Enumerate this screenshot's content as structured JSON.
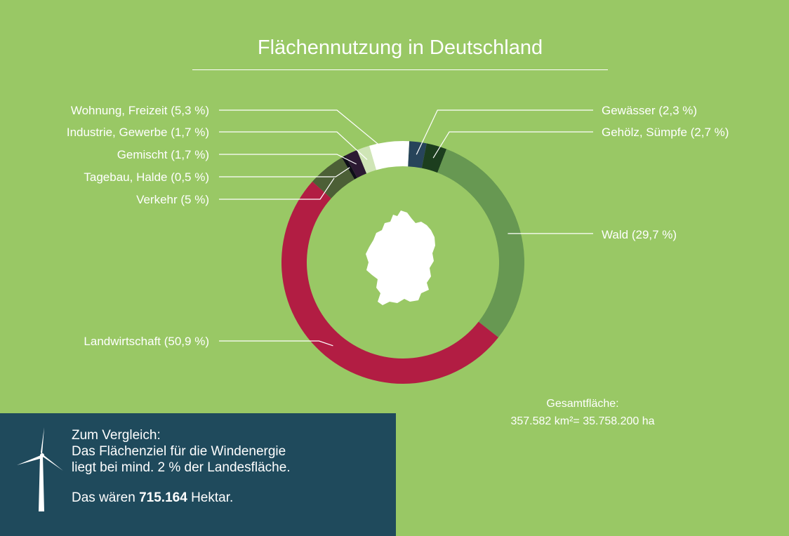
{
  "title": "Flächennutzung in Deutschland",
  "chart_data": {
    "type": "pie",
    "variant": "donut",
    "title": "Flächennutzung in Deutschland",
    "slices": [
      {
        "label": "Gewässer (2,3 %)",
        "value": 2.3,
        "color": "#27445a"
      },
      {
        "label": "Gehölz, Sümpfe (2,7 %)",
        "value": 2.7,
        "color": "#1c3e1e"
      },
      {
        "label": "Wald (29,7 %)",
        "value": 29.7,
        "color": "#679852"
      },
      {
        "label": "Landwirtschaft (50,9 %)",
        "value": 50.9,
        "color": "#b21d43"
      },
      {
        "label": "Verkehr (5 %)",
        "value": 5.0,
        "color": "#4c5f36"
      },
      {
        "label": "Tagebau, Halde (0,5 %)",
        "value": 0.5,
        "color": "#0e0e18"
      },
      {
        "label": "Gemischt (1,7 %)",
        "value": 1.7,
        "color": "#2c1a33"
      },
      {
        "label": "Industrie, Gewerbe (1,7 %)",
        "value": 1.7,
        "color": "#cfe5b6"
      },
      {
        "label": "Wohnung, Freizeit (5,3 %)",
        "value": 5.3,
        "color": "#ffffff"
      }
    ],
    "center_icon": "germany-map-silhouette"
  },
  "total": {
    "label": "Gesamtfläche:",
    "value": "357.582 km²= 35.758.200 ha"
  },
  "info_box": {
    "icon": "wind-turbine-icon",
    "line1": "Zum Vergleich:",
    "line2": "Das Flächenziel für die Windenergie",
    "line3": "liegt bei mind. 2 % der Landesfläche.",
    "line4_prefix": "Das wären ",
    "line4_bold": "715.164",
    "line4_suffix": " Hektar."
  }
}
